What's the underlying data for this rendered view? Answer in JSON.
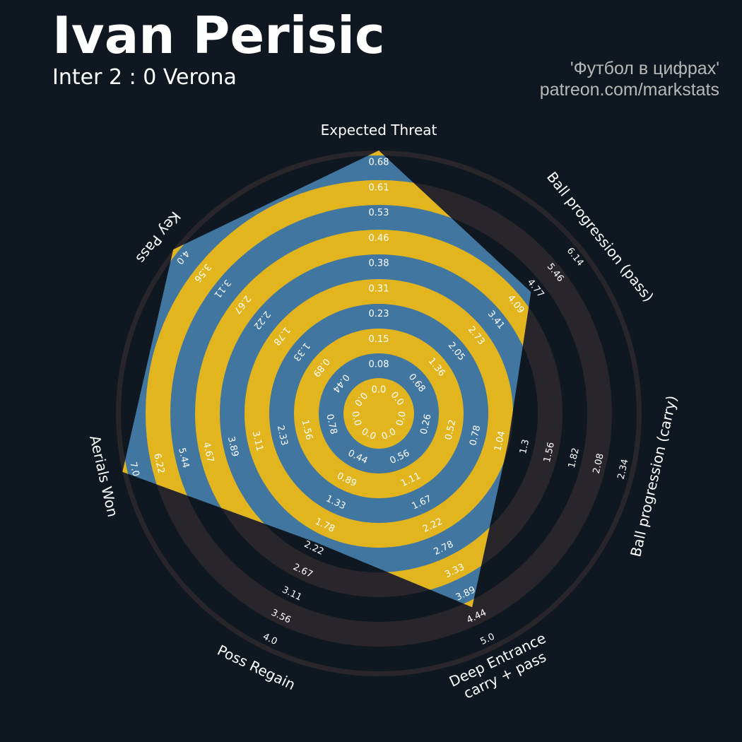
{
  "header": {
    "title": "Ivan Perisic",
    "subtitle": "Inter 2 : 0 Verona",
    "credit_line1": "'Футбол в цифрах'",
    "credit_line2": "patreon.com/markstats"
  },
  "colors": {
    "background": "#0f1820",
    "ring_yellow": "#e2b51e",
    "ring_outer": "#28252b",
    "polygon": "#4076a0",
    "text": "#ffffff"
  },
  "chart_data": {
    "type": "radar",
    "axes": [
      {
        "label": [
          "Expected Threat"
        ],
        "value": 0.68,
        "ticks": [
          "0.0",
          "0.08",
          "0.15",
          "0.23",
          "0.31",
          "0.38",
          "0.46",
          "0.53",
          "0.61",
          "0.68"
        ],
        "range": [
          0,
          0.68
        ]
      },
      {
        "label": [
          "Ball progression (pass)"
        ],
        "value": 4.3,
        "ticks": [
          "0.0",
          "0.68",
          "1.36",
          "2.05",
          "2.73",
          "3.41",
          "4.09",
          "4.77",
          "5.46",
          "6.14"
        ],
        "range": [
          0,
          6.14
        ]
      },
      {
        "label": [
          "Ball progression (carry)"
        ],
        "value": 1.0,
        "ticks": [
          "0.0",
          "0.26",
          "0.52",
          "0.78",
          "1.04",
          "1.3",
          "1.56",
          "1.82",
          "2.08",
          "2.34"
        ],
        "range": [
          0,
          2.34
        ]
      },
      {
        "label": [
          "Deep Entrance",
          "carry + pass"
        ],
        "value": 3.95,
        "ticks": [
          "0.0",
          "0.56",
          "1.11",
          "1.67",
          "2.22",
          "2.78",
          "3.33",
          "3.89",
          "4.44",
          "5.0"
        ],
        "range": [
          0,
          5.0
        ]
      },
      {
        "label": [
          "Poss Regain"
        ],
        "value": 1.9,
        "ticks": [
          "0.0",
          "0.44",
          "0.89",
          "1.33",
          "1.78",
          "2.22",
          "2.67",
          "3.11",
          "3.56",
          "4.0"
        ],
        "range": [
          0,
          4.0
        ]
      },
      {
        "label": [
          "Aerials Won"
        ],
        "value": 7.0,
        "ticks": [
          "0.0",
          "0.78",
          "1.56",
          "2.33",
          "3.11",
          "3.89",
          "4.67",
          "5.44",
          "6.22",
          "7.0"
        ],
        "range": [
          0,
          7.0
        ]
      },
      {
        "label": [
          "Key Pass"
        ],
        "value": 4.0,
        "ticks": [
          "0.0",
          "0.44",
          "0.89",
          "1.33",
          "1.78",
          "2.22",
          "2.67",
          "3.11",
          "3.56",
          "4.0"
        ],
        "range": [
          0,
          4.0
        ]
      }
    ]
  }
}
